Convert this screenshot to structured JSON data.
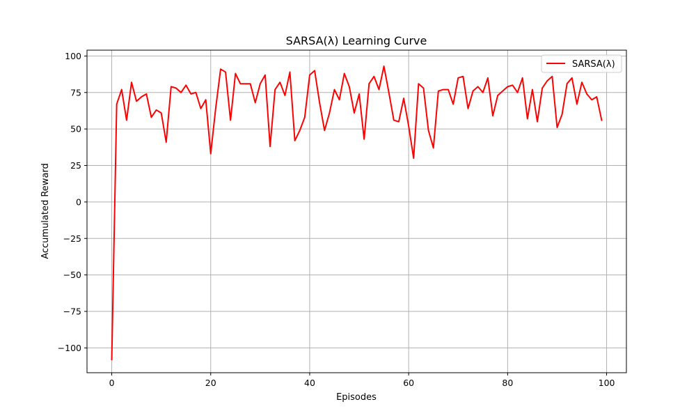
{
  "chart_data": {
    "type": "line",
    "title": "SARSA(λ) Learning Curve",
    "xlabel": "Episodes",
    "ylabel": "Accumulated Reward",
    "xlim": [
      -5,
      104
    ],
    "ylim": [
      -117,
      104
    ],
    "x_ticks": [
      0,
      20,
      40,
      60,
      80,
      100
    ],
    "y_ticks": [
      -100,
      -75,
      -50,
      -25,
      0,
      25,
      50,
      75,
      100
    ],
    "y_tick_labels": [
      "−100",
      "−75",
      "−50",
      "−25",
      "0",
      "25",
      "50",
      "75",
      "100"
    ],
    "grid": true,
    "legend_position": "top-right",
    "series": [
      {
        "name": "SARSA(λ)",
        "color": "#ff0000",
        "x": [
          0,
          1,
          2,
          3,
          4,
          5,
          6,
          7,
          8,
          9,
          10,
          11,
          12,
          13,
          14,
          15,
          16,
          17,
          18,
          19,
          20,
          21,
          22,
          23,
          24,
          25,
          26,
          27,
          28,
          29,
          30,
          31,
          32,
          33,
          34,
          35,
          36,
          37,
          38,
          39,
          40,
          41,
          42,
          43,
          44,
          45,
          46,
          47,
          48,
          49,
          50,
          51,
          52,
          53,
          54,
          55,
          56,
          57,
          58,
          59,
          60,
          61,
          62,
          63,
          64,
          65,
          66,
          67,
          68,
          69,
          70,
          71,
          72,
          73,
          74,
          75,
          76,
          77,
          78,
          79,
          80,
          81,
          82,
          83,
          84,
          85,
          86,
          87,
          88,
          89,
          90,
          91,
          92,
          93,
          94,
          95,
          96,
          97,
          98,
          99
        ],
        "values": [
          -108,
          67,
          77,
          56,
          82,
          69,
          72,
          74,
          58,
          63,
          61,
          41,
          79,
          78,
          75,
          80,
          74,
          75,
          64,
          70,
          33,
          64,
          91,
          89,
          56,
          88,
          81,
          81,
          81,
          68,
          81,
          87,
          38,
          77,
          82,
          73,
          89,
          42,
          49,
          58,
          87,
          90,
          68,
          49,
          61,
          77,
          70,
          88,
          79,
          61,
          74,
          43,
          81,
          86,
          77,
          93,
          75,
          56,
          55,
          71,
          52,
          30,
          81,
          78,
          49,
          37,
          76,
          77,
          77,
          67,
          85,
          86,
          64,
          76,
          79,
          75,
          85,
          59,
          73,
          76,
          79,
          80,
          75,
          85,
          57,
          77,
          55,
          78,
          83,
          86,
          51,
          60,
          81,
          85,
          67,
          82,
          74,
          70,
          72,
          56
        ]
      }
    ]
  }
}
